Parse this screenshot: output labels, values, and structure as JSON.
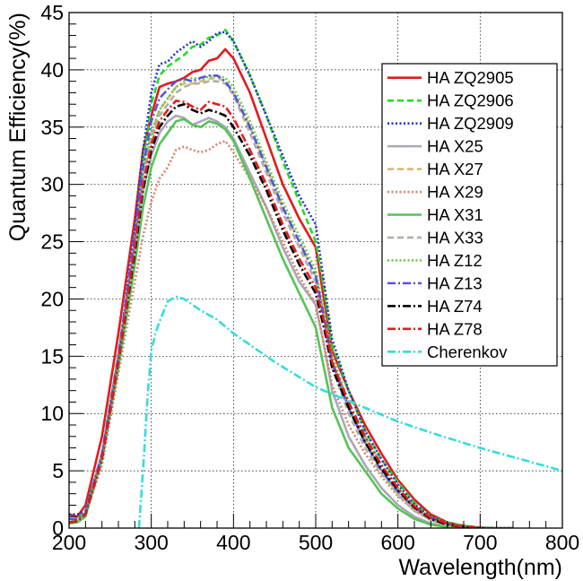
{
  "chart_data": {
    "type": "line",
    "title": "",
    "xlabel": "Wavelength(nm)",
    "ylabel": "Quantum Efficiency(%)",
    "xlim": [
      200,
      800
    ],
    "ylim": [
      0,
      45
    ],
    "xticks": [
      200,
      300,
      400,
      500,
      600,
      700,
      800
    ],
    "yticks": [
      0,
      5,
      10,
      15,
      20,
      25,
      30,
      35,
      40,
      45
    ],
    "grid": true,
    "legend_position": "top-right",
    "series": [
      {
        "name": "HA ZQ2905",
        "color": "#e41a1c",
        "dash": "solid",
        "x": [
          200,
          210,
          220,
          240,
          260,
          280,
          290,
          300,
          310,
          320,
          330,
          340,
          350,
          360,
          370,
          380,
          390,
          400,
          420,
          440,
          460,
          480,
          500,
          510,
          520,
          540,
          560,
          580,
          600,
          620,
          640,
          660,
          680,
          700,
          720,
          740
        ],
        "y": [
          1.2,
          1.0,
          2.0,
          8.0,
          17.0,
          27.0,
          33.0,
          36.0,
          38.5,
          38.8,
          39.0,
          39.3,
          39.8,
          40.0,
          40.8,
          41.0,
          41.8,
          41.0,
          38.0,
          34.0,
          30.0,
          27.0,
          24.5,
          20.0,
          15.5,
          12.0,
          9.0,
          6.5,
          4.2,
          2.5,
          1.2,
          0.5,
          0.2,
          0.05,
          0,
          0
        ]
      },
      {
        "name": "HA ZQ2906",
        "color": "#22dd22",
        "dash": "dashed",
        "x": [
          200,
          210,
          220,
          240,
          260,
          280,
          290,
          300,
          310,
          320,
          330,
          340,
          350,
          360,
          370,
          380,
          390,
          400,
          420,
          440,
          460,
          480,
          500,
          510,
          520,
          540,
          560,
          580,
          600,
          620,
          640,
          660,
          680,
          700,
          720,
          740
        ],
        "y": [
          0.8,
          0.8,
          1.5,
          6.5,
          15.0,
          25.0,
          32.0,
          37.0,
          39.5,
          40.3,
          40.8,
          41.3,
          42.0,
          42.2,
          42.8,
          43.0,
          43.5,
          42.5,
          39.5,
          36.0,
          32.0,
          28.5,
          25.0,
          21.0,
          16.0,
          12.0,
          8.5,
          6.0,
          4.0,
          2.2,
          1.0,
          0.5,
          0.2,
          0.05,
          0,
          0
        ]
      },
      {
        "name": "HA ZQ2909",
        "color": "#2233cc",
        "dash": "dotted",
        "x": [
          200,
          210,
          220,
          240,
          260,
          280,
          290,
          300,
          310,
          320,
          330,
          340,
          350,
          360,
          370,
          380,
          390,
          400,
          420,
          440,
          460,
          480,
          500,
          510,
          520,
          540,
          560,
          580,
          600,
          620,
          640,
          660,
          680,
          700,
          720,
          740
        ],
        "y": [
          1.2,
          1.2,
          1.5,
          6.5,
          15.0,
          26.0,
          33.0,
          38.0,
          40.5,
          40.7,
          41.5,
          42.0,
          42.5,
          42.0,
          42.5,
          43.2,
          43.3,
          42.5,
          39.5,
          36.0,
          32.5,
          29.0,
          26.5,
          21.5,
          16.5,
          12.0,
          8.5,
          6.0,
          3.8,
          2.1,
          1.0,
          0.4,
          0.1,
          0,
          0,
          0
        ]
      },
      {
        "name": "HA X25",
        "color": "#a8a8b8",
        "dash": "solid",
        "x": [
          200,
          210,
          220,
          240,
          260,
          280,
          290,
          300,
          310,
          320,
          330,
          340,
          350,
          360,
          370,
          380,
          390,
          400,
          420,
          440,
          460,
          480,
          500,
          510,
          520,
          540,
          560,
          580,
          600,
          620,
          640,
          660,
          680,
          700
        ],
        "y": [
          0.5,
          0.6,
          1.2,
          6.5,
          15.0,
          24.5,
          29.5,
          32.5,
          34.5,
          35.5,
          36.0,
          35.8,
          35.2,
          35.5,
          35.8,
          35.5,
          35.0,
          34.0,
          31.0,
          28.0,
          24.5,
          21.5,
          19.5,
          16.0,
          12.0,
          8.0,
          5.5,
          3.5,
          2.0,
          1.0,
          0.4,
          0.15,
          0,
          0
        ]
      },
      {
        "name": "HA X27",
        "color": "#d9b870",
        "dash": "dashed",
        "x": [
          200,
          210,
          220,
          240,
          260,
          280,
          290,
          300,
          310,
          320,
          330,
          340,
          350,
          360,
          370,
          380,
          390,
          400,
          420,
          440,
          460,
          480,
          500,
          510,
          520,
          540,
          560,
          580,
          600,
          620,
          640,
          660,
          680,
          700
        ],
        "y": [
          0.5,
          0.6,
          1.2,
          6.5,
          15.5,
          25.0,
          31.0,
          34.5,
          36.5,
          37.5,
          38.5,
          38.8,
          38.8,
          39.0,
          39.2,
          39.3,
          39.0,
          38.0,
          35.0,
          31.5,
          28.0,
          25.0,
          22.0,
          18.5,
          14.5,
          10.5,
          7.5,
          5.0,
          3.0,
          1.6,
          0.7,
          0.3,
          0.1,
          0
        ]
      },
      {
        "name": "HA X29",
        "color": "#d9826a",
        "dash": "dotted",
        "x": [
          200,
          210,
          220,
          240,
          260,
          280,
          290,
          300,
          310,
          320,
          330,
          340,
          350,
          360,
          370,
          380,
          390,
          400,
          420,
          440,
          460,
          480,
          500,
          510,
          520,
          540,
          560,
          580,
          600,
          620,
          640,
          660,
          680,
          700
        ],
        "y": [
          0.5,
          0.6,
          1.2,
          5.5,
          13.5,
          21.5,
          25.5,
          28.5,
          30.5,
          31.5,
          33.0,
          33.3,
          33.0,
          32.8,
          33.0,
          33.5,
          33.8,
          32.8,
          30.5,
          28.0,
          25.0,
          22.0,
          19.5,
          16.0,
          12.5,
          9.0,
          6.5,
          4.5,
          2.8,
          1.5,
          0.7,
          0.3,
          0.1,
          0
        ]
      },
      {
        "name": "HA X31",
        "color": "#55c455",
        "dash": "solid",
        "x": [
          200,
          210,
          220,
          240,
          260,
          280,
          290,
          300,
          310,
          320,
          330,
          340,
          350,
          360,
          370,
          380,
          390,
          400,
          420,
          440,
          460,
          480,
          500,
          510,
          520,
          540,
          560,
          580,
          600,
          620,
          640,
          660,
          680,
          700
        ],
        "y": [
          0.4,
          0.5,
          1.0,
          6.0,
          14.0,
          23.0,
          28.0,
          31.5,
          33.5,
          34.5,
          35.5,
          35.7,
          35.2,
          35.0,
          35.5,
          35.3,
          34.8,
          33.8,
          30.5,
          27.0,
          23.5,
          20.5,
          17.5,
          14.0,
          10.5,
          7.0,
          5.0,
          3.0,
          1.7,
          0.8,
          0.3,
          0.1,
          0,
          0
        ]
      },
      {
        "name": "HA X33",
        "color": "#b0b0a8",
        "dash": "dashed",
        "x": [
          200,
          210,
          220,
          240,
          260,
          280,
          290,
          300,
          310,
          320,
          330,
          340,
          350,
          360,
          370,
          380,
          390,
          400,
          420,
          440,
          460,
          480,
          500,
          510,
          520,
          540,
          560,
          580,
          600,
          620,
          640,
          660,
          680,
          700
        ],
        "y": [
          0.5,
          0.6,
          1.2,
          6.5,
          15.0,
          25.0,
          30.5,
          34.0,
          36.0,
          37.0,
          38.0,
          38.5,
          38.8,
          38.8,
          39.0,
          39.0,
          38.8,
          37.8,
          34.5,
          31.0,
          27.5,
          24.5,
          21.5,
          18.0,
          14.0,
          10.0,
          7.0,
          4.8,
          2.9,
          1.5,
          0.7,
          0.3,
          0.1,
          0
        ]
      },
      {
        "name": "HA Z12",
        "color": "#66cc44",
        "dash": "dotted",
        "x": [
          200,
          210,
          220,
          240,
          260,
          280,
          290,
          300,
          310,
          320,
          330,
          340,
          350,
          360,
          370,
          380,
          390,
          400,
          420,
          440,
          460,
          480,
          500,
          510,
          520,
          540,
          560,
          580,
          600,
          620,
          640,
          660,
          680,
          700
        ],
        "y": [
          0.5,
          0.6,
          1.2,
          6.5,
          15.0,
          25.0,
          31.0,
          34.5,
          36.5,
          37.5,
          38.5,
          39.0,
          39.3,
          39.2,
          39.4,
          39.5,
          39.3,
          38.5,
          35.5,
          32.0,
          28.5,
          25.5,
          22.5,
          19.0,
          15.0,
          11.0,
          8.0,
          5.5,
          3.5,
          1.9,
          0.9,
          0.4,
          0.1,
          0
        ]
      },
      {
        "name": "HA Z13",
        "color": "#5555dd",
        "dash": "dashdot",
        "x": [
          200,
          210,
          220,
          240,
          260,
          280,
          290,
          300,
          310,
          320,
          330,
          340,
          350,
          360,
          370,
          380,
          390,
          400,
          420,
          440,
          460,
          480,
          500,
          510,
          520,
          540,
          560,
          580,
          600,
          620,
          640,
          660,
          680,
          700
        ],
        "y": [
          0.8,
          0.8,
          1.3,
          6.5,
          15.0,
          25.5,
          31.5,
          35.5,
          37.5,
          38.3,
          39.0,
          39.2,
          39.0,
          39.3,
          39.5,
          39.5,
          39.0,
          38.0,
          35.0,
          31.5,
          28.0,
          25.0,
          22.0,
          18.5,
          14.5,
          10.5,
          7.5,
          5.0,
          3.2,
          1.8,
          0.9,
          0.4,
          0.1,
          0
        ]
      },
      {
        "name": "HA Z74",
        "color": "#000000",
        "dash": "dashdot",
        "x": [
          200,
          210,
          220,
          240,
          260,
          280,
          290,
          300,
          310,
          320,
          330,
          340,
          350,
          360,
          370,
          380,
          390,
          400,
          420,
          440,
          460,
          480,
          500,
          510,
          520,
          540,
          560,
          580,
          600,
          620,
          640,
          660,
          680,
          700
        ],
        "y": [
          0.5,
          0.6,
          1.2,
          6.0,
          14.5,
          24.0,
          29.5,
          33.0,
          35.0,
          36.0,
          36.8,
          37.0,
          36.5,
          36.2,
          36.5,
          36.3,
          36.0,
          35.0,
          32.5,
          29.5,
          26.0,
          23.0,
          20.5,
          17.5,
          14.0,
          10.5,
          7.5,
          5.2,
          3.3,
          1.8,
          0.8,
          0.3,
          0.1,
          0
        ]
      },
      {
        "name": "HA Z78",
        "color": "#e41a1c",
        "dash": "dashdot",
        "x": [
          200,
          210,
          220,
          240,
          260,
          280,
          290,
          300,
          310,
          320,
          330,
          340,
          350,
          360,
          370,
          380,
          390,
          400,
          420,
          440,
          460,
          480,
          500,
          510,
          520,
          540,
          560,
          580,
          600,
          620,
          640,
          660,
          680,
          700
        ],
        "y": [
          0.5,
          0.6,
          1.2,
          6.0,
          14.5,
          24.5,
          30.0,
          33.5,
          35.5,
          36.5,
          37.3,
          37.2,
          36.8,
          36.5,
          37.2,
          37.0,
          36.8,
          35.8,
          33.0,
          30.0,
          26.5,
          23.5,
          21.0,
          18.0,
          14.5,
          11.0,
          8.0,
          5.5,
          3.5,
          1.9,
          0.9,
          0.4,
          0.1,
          0
        ]
      },
      {
        "name": "Cherenkov",
        "color": "#33dddd",
        "dash": "dashdot",
        "x": [
          285,
          290,
          295,
          300,
          305,
          310,
          320,
          330,
          340,
          360,
          380,
          400,
          450,
          500,
          550,
          600,
          650,
          700,
          750,
          800
        ],
        "y": [
          0,
          5.0,
          11.0,
          15.5,
          17.0,
          18.0,
          19.8,
          20.2,
          20.0,
          19.0,
          18.2,
          17.0,
          14.5,
          12.3,
          10.8,
          9.3,
          8.1,
          7.0,
          6.0,
          5.0
        ]
      }
    ]
  }
}
